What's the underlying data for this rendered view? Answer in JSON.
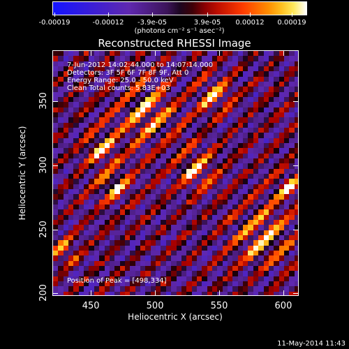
{
  "colorbar": {
    "tick_labels": [
      "-0.00019",
      "-0.00012",
      "-3.9e-05",
      "3.9e-05",
      "0.00012",
      "0.00019"
    ],
    "units": "(photons cm⁻² s⁻¹ asec⁻²)"
  },
  "chart_data": {
    "type": "heatmap",
    "title": "Reconstructed RHESSI Image",
    "xlabel": "Heliocentric X (arcsec)",
    "ylabel": "Heliocentric Y (arcsec)",
    "xlim": [
      420,
      612
    ],
    "ylim": [
      198,
      390
    ],
    "x_ticks": [
      "450",
      "500",
      "550",
      "600"
    ],
    "y_ticks": [
      "350",
      "300",
      "250",
      "200"
    ],
    "color_range": [
      -0.00019,
      0.00019
    ],
    "annotations": {
      "time": "7-Jun-2012 14:02:44.000 to 14:07:14.000",
      "detectors": "Detectors: 3F 5F 6F 7F 8F 9F, Att 0",
      "energy": "Energy Range: 25.0 - 50.0 keV",
      "clean": "Clean    Total counts: 5.83E+03",
      "peak": "Position of Peak = [498,334]"
    }
  },
  "footer": {
    "timestamp": "11-May-2014 11:43"
  }
}
